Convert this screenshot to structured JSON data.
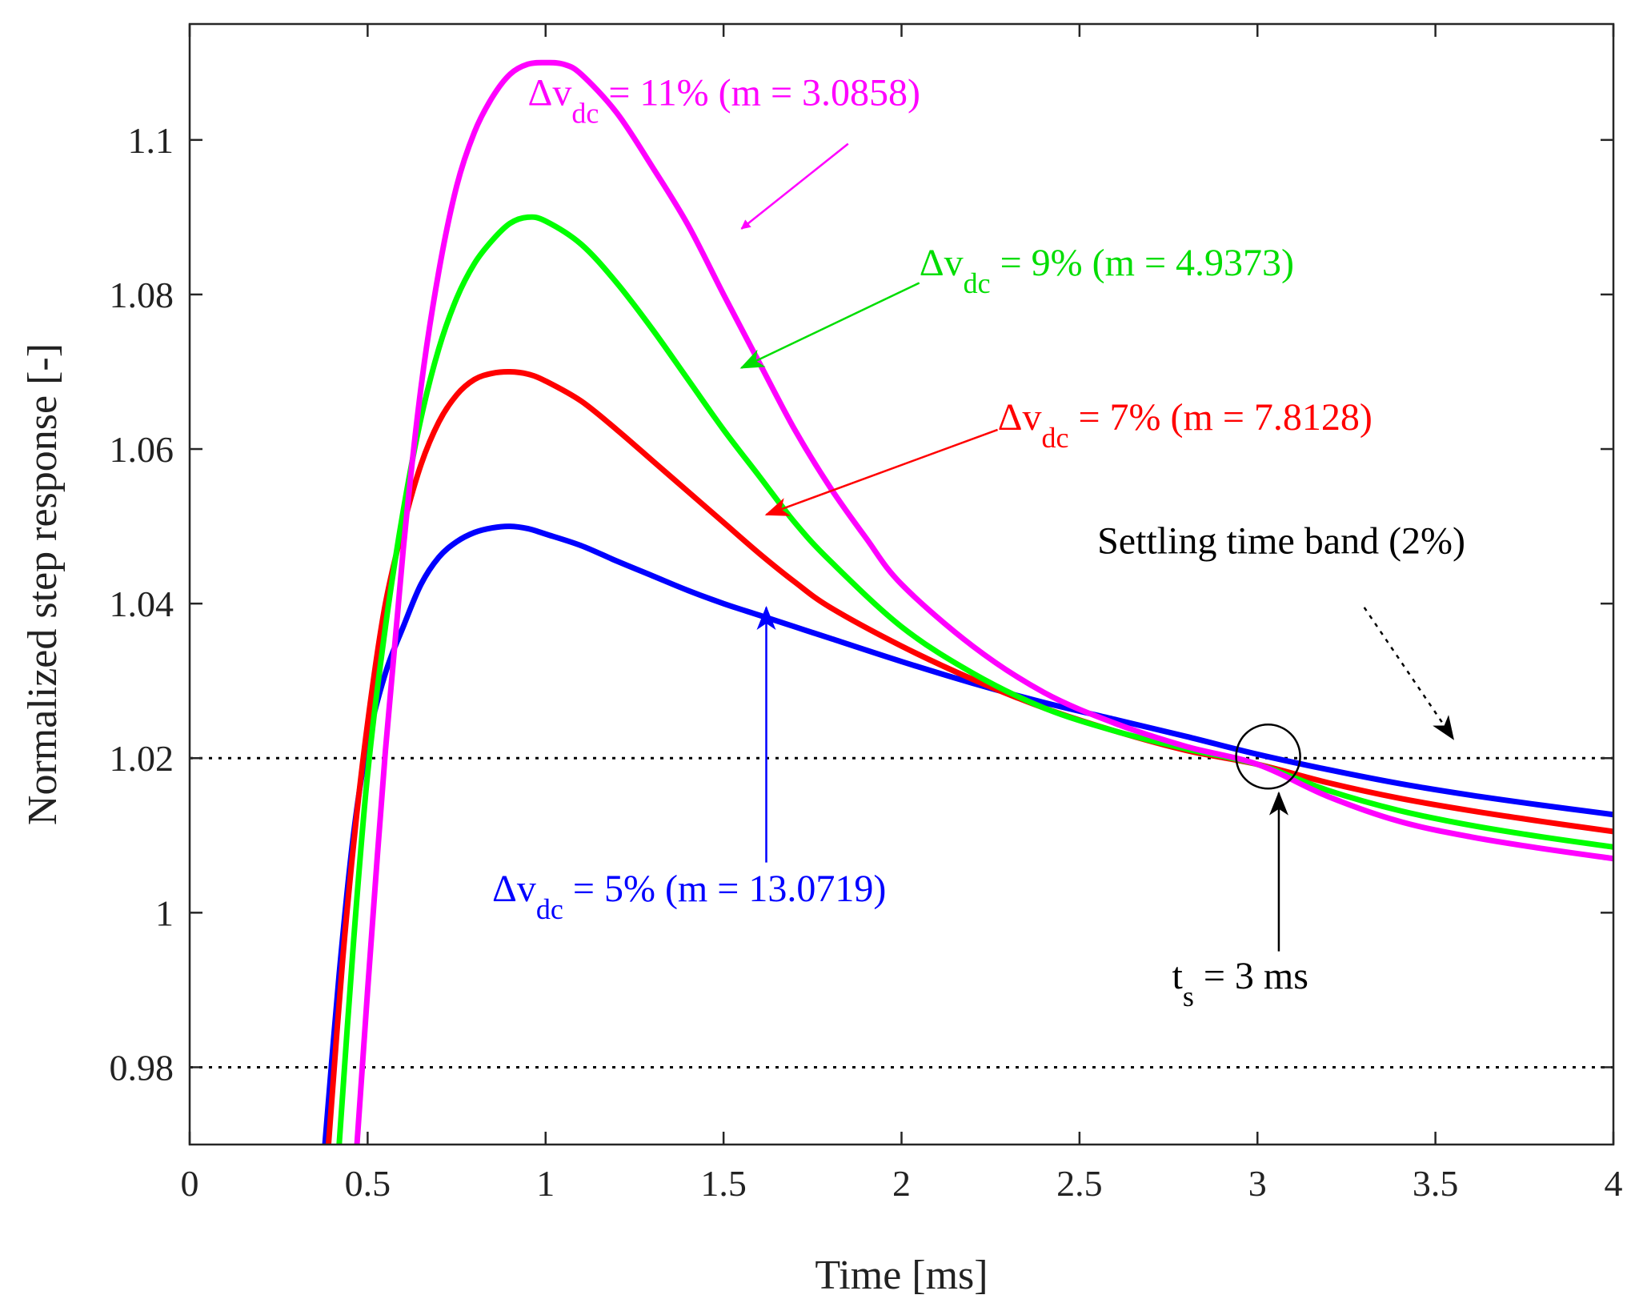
{
  "chart_data": {
    "type": "line",
    "xlabel": "Time [ms]",
    "ylabel": "Normalized step response [-]",
    "xlim": [
      0,
      4
    ],
    "ylim": [
      0.97,
      1.115
    ],
    "xticks": [
      0,
      0.5,
      1,
      1.5,
      2,
      2.5,
      3,
      3.5,
      4
    ],
    "xtick_labels": [
      "0",
      "0.5",
      "1",
      "1.5",
      "2",
      "2.5",
      "3",
      "3.5",
      "4"
    ],
    "yticks": [
      0.98,
      1,
      1.02,
      1.04,
      1.06,
      1.08,
      1.1
    ],
    "ytick_labels": [
      "0.98",
      "1",
      "1.02",
      "1.04",
      "1.06",
      "1.08",
      "1.1"
    ],
    "grid": false,
    "series": [
      {
        "name": "Δv_dc = 5% (m = 13.0719)",
        "color": "#0000ff",
        "points": [
          [
            0.38,
            0.97
          ],
          [
            0.42,
            0.992
          ],
          [
            0.46,
            1.01
          ],
          [
            0.5,
            1.022
          ],
          [
            0.55,
            1.031
          ],
          [
            0.6,
            1.037
          ],
          [
            0.65,
            1.0425
          ],
          [
            0.7,
            1.046
          ],
          [
            0.75,
            1.048
          ],
          [
            0.8,
            1.0492
          ],
          [
            0.85,
            1.0498
          ],
          [
            0.9,
            1.05
          ],
          [
            0.95,
            1.0497
          ],
          [
            1.0,
            1.049
          ],
          [
            1.1,
            1.0475
          ],
          [
            1.2,
            1.0455
          ],
          [
            1.3,
            1.0436
          ],
          [
            1.4,
            1.0417
          ],
          [
            1.5,
            1.04
          ],
          [
            1.6,
            1.0385
          ],
          [
            1.7,
            1.037
          ],
          [
            1.8,
            1.0355
          ],
          [
            2.0,
            1.0325
          ],
          [
            2.2,
            1.0297
          ],
          [
            2.4,
            1.0272
          ],
          [
            2.6,
            1.025
          ],
          [
            2.8,
            1.0228
          ],
          [
            3.0,
            1.0205
          ],
          [
            3.2,
            1.0185
          ],
          [
            3.4,
            1.0167
          ],
          [
            3.6,
            1.0152
          ],
          [
            3.8,
            1.0139
          ],
          [
            4.0,
            1.0127
          ]
        ]
      },
      {
        "name": "Δv_dc = 7% (m = 7.8128)",
        "color": "#ff0000",
        "points": [
          [
            0.39,
            0.97
          ],
          [
            0.43,
            0.994
          ],
          [
            0.47,
            1.013
          ],
          [
            0.51,
            1.028
          ],
          [
            0.55,
            1.04
          ],
          [
            0.6,
            1.05
          ],
          [
            0.65,
            1.058
          ],
          [
            0.7,
            1.0635
          ],
          [
            0.75,
            1.067
          ],
          [
            0.8,
            1.069
          ],
          [
            0.85,
            1.0698
          ],
          [
            0.9,
            1.07
          ],
          [
            0.95,
            1.0697
          ],
          [
            1.0,
            1.0688
          ],
          [
            1.1,
            1.0662
          ],
          [
            1.2,
            1.0625
          ],
          [
            1.3,
            1.0585
          ],
          [
            1.4,
            1.0545
          ],
          [
            1.5,
            1.0505
          ],
          [
            1.6,
            1.0465
          ],
          [
            1.7,
            1.0428
          ],
          [
            1.8,
            1.0395
          ],
          [
            2.0,
            1.0345
          ],
          [
            2.2,
            1.0302
          ],
          [
            2.4,
            1.0265
          ],
          [
            2.6,
            1.0235
          ],
          [
            2.8,
            1.021
          ],
          [
            3.0,
            1.0192
          ],
          [
            3.2,
            1.0168
          ],
          [
            3.4,
            1.0148
          ],
          [
            3.6,
            1.0132
          ],
          [
            3.8,
            1.0118
          ],
          [
            4.0,
            1.0105
          ]
        ]
      },
      {
        "name": "Δv_dc = 9% (m = 4.9373)",
        "color": "#00ff00",
        "points": [
          [
            0.42,
            0.97
          ],
          [
            0.46,
            0.996
          ],
          [
            0.5,
            1.018
          ],
          [
            0.55,
            1.037
          ],
          [
            0.6,
            1.052
          ],
          [
            0.65,
            1.064
          ],
          [
            0.7,
            1.073
          ],
          [
            0.75,
            1.0795
          ],
          [
            0.8,
            1.084
          ],
          [
            0.85,
            1.087
          ],
          [
            0.9,
            1.0892
          ],
          [
            0.95,
            1.09
          ],
          [
            1.0,
            1.0895
          ],
          [
            1.1,
            1.0865
          ],
          [
            1.2,
            1.0815
          ],
          [
            1.3,
            1.0755
          ],
          [
            1.4,
            1.069
          ],
          [
            1.5,
            1.0625
          ],
          [
            1.6,
            1.0565
          ],
          [
            1.7,
            1.0505
          ],
          [
            1.8,
            1.0455
          ],
          [
            2.0,
            1.037
          ],
          [
            2.2,
            1.031
          ],
          [
            2.4,
            1.0265
          ],
          [
            2.6,
            1.0235
          ],
          [
            2.8,
            1.0212
          ],
          [
            3.0,
            1.0192
          ],
          [
            3.2,
            1.0158
          ],
          [
            3.4,
            1.0132
          ],
          [
            3.6,
            1.0113
          ],
          [
            3.8,
            1.0098
          ],
          [
            4.0,
            1.0085
          ]
        ]
      },
      {
        "name": "Δv_dc = 11% (m = 3.0858)",
        "color": "#ff00ff",
        "points": [
          [
            0.47,
            0.97
          ],
          [
            0.5,
            0.99
          ],
          [
            0.55,
            1.021
          ],
          [
            0.6,
            1.047
          ],
          [
            0.65,
            1.068
          ],
          [
            0.7,
            1.083
          ],
          [
            0.75,
            1.094
          ],
          [
            0.8,
            1.101
          ],
          [
            0.85,
            1.1055
          ],
          [
            0.9,
            1.1085
          ],
          [
            0.95,
            1.1098
          ],
          [
            1.0,
            1.11
          ],
          [
            1.05,
            1.1098
          ],
          [
            1.1,
            1.1085
          ],
          [
            1.2,
            1.1035
          ],
          [
            1.3,
            1.0965
          ],
          [
            1.4,
            1.089
          ],
          [
            1.5,
            1.08
          ],
          [
            1.6,
            1.0712
          ],
          [
            1.7,
            1.0625
          ],
          [
            1.8,
            1.055
          ],
          [
            1.9,
            1.0485
          ],
          [
            2.0,
            1.0425
          ],
          [
            2.2,
            1.0345
          ],
          [
            2.4,
            1.0285
          ],
          [
            2.6,
            1.0245
          ],
          [
            2.8,
            1.0215
          ],
          [
            3.0,
            1.0192
          ],
          [
            3.2,
            1.015
          ],
          [
            3.4,
            1.0118
          ],
          [
            3.6,
            1.0098
          ],
          [
            3.8,
            1.0083
          ],
          [
            4.0,
            1.007
          ]
        ]
      }
    ],
    "reference_lines": [
      {
        "y": 1.02,
        "style": "dotted",
        "color": "#000000"
      },
      {
        "y": 0.98,
        "style": "dotted",
        "color": "#000000"
      }
    ],
    "annotations": [
      {
        "id": "magenta",
        "text": "Δv",
        "sub": "dc",
        "rest": " = 11% (m = 3.0858)",
        "color": "#ff00ff",
        "x": 0.95,
        "y": 1.1045,
        "arrow_from": [
          1.85,
          1.0995
        ],
        "arrow_to": [
          1.55,
          1.0885
        ]
      },
      {
        "id": "green",
        "text": "Δv",
        "sub": "dc",
        "rest": " = 9% (m = 4.9373)",
        "color": "#00dd00",
        "x": 2.05,
        "y": 1.0825,
        "arrow_from": [
          2.05,
          1.0815
        ],
        "arrow_to": [
          1.55,
          1.0705
        ]
      },
      {
        "id": "red",
        "text": "Δv",
        "sub": "dc",
        "rest": " = 7% (m = 7.8128)",
        "color": "#ff0000",
        "x": 2.27,
        "y": 1.0625,
        "arrow_from": [
          2.27,
          1.0625
        ],
        "arrow_to": [
          1.62,
          1.0515
        ]
      },
      {
        "id": "blue",
        "text": "Δv",
        "sub": "dc",
        "rest": " = 5% (m = 13.0719)",
        "color": "#0000ff",
        "x": 0.85,
        "y": 1.0015,
        "arrow_from": [
          1.62,
          1.0065
        ],
        "arrow_to": [
          1.62,
          1.0395
        ]
      },
      {
        "id": "band",
        "text": "Settling time band (2%)",
        "color": "#000000",
        "x": 2.55,
        "y": 1.0465,
        "arrow_from": [
          3.3,
          1.0395
        ],
        "arrow_to": [
          3.55,
          1.0225
        ],
        "dotted_arrow": true
      },
      {
        "id": "ts",
        "text": "t",
        "sub": "s",
        "rest": " = 3 ms",
        "color": "#000000",
        "x": 2.76,
        "y": 0.9902,
        "arrow_from": [
          3.06,
          0.995
        ],
        "arrow_to": [
          3.06,
          1.0155
        ]
      }
    ],
    "marker": {
      "type": "circle",
      "x": 3.03,
      "y": 1.0202
    }
  }
}
